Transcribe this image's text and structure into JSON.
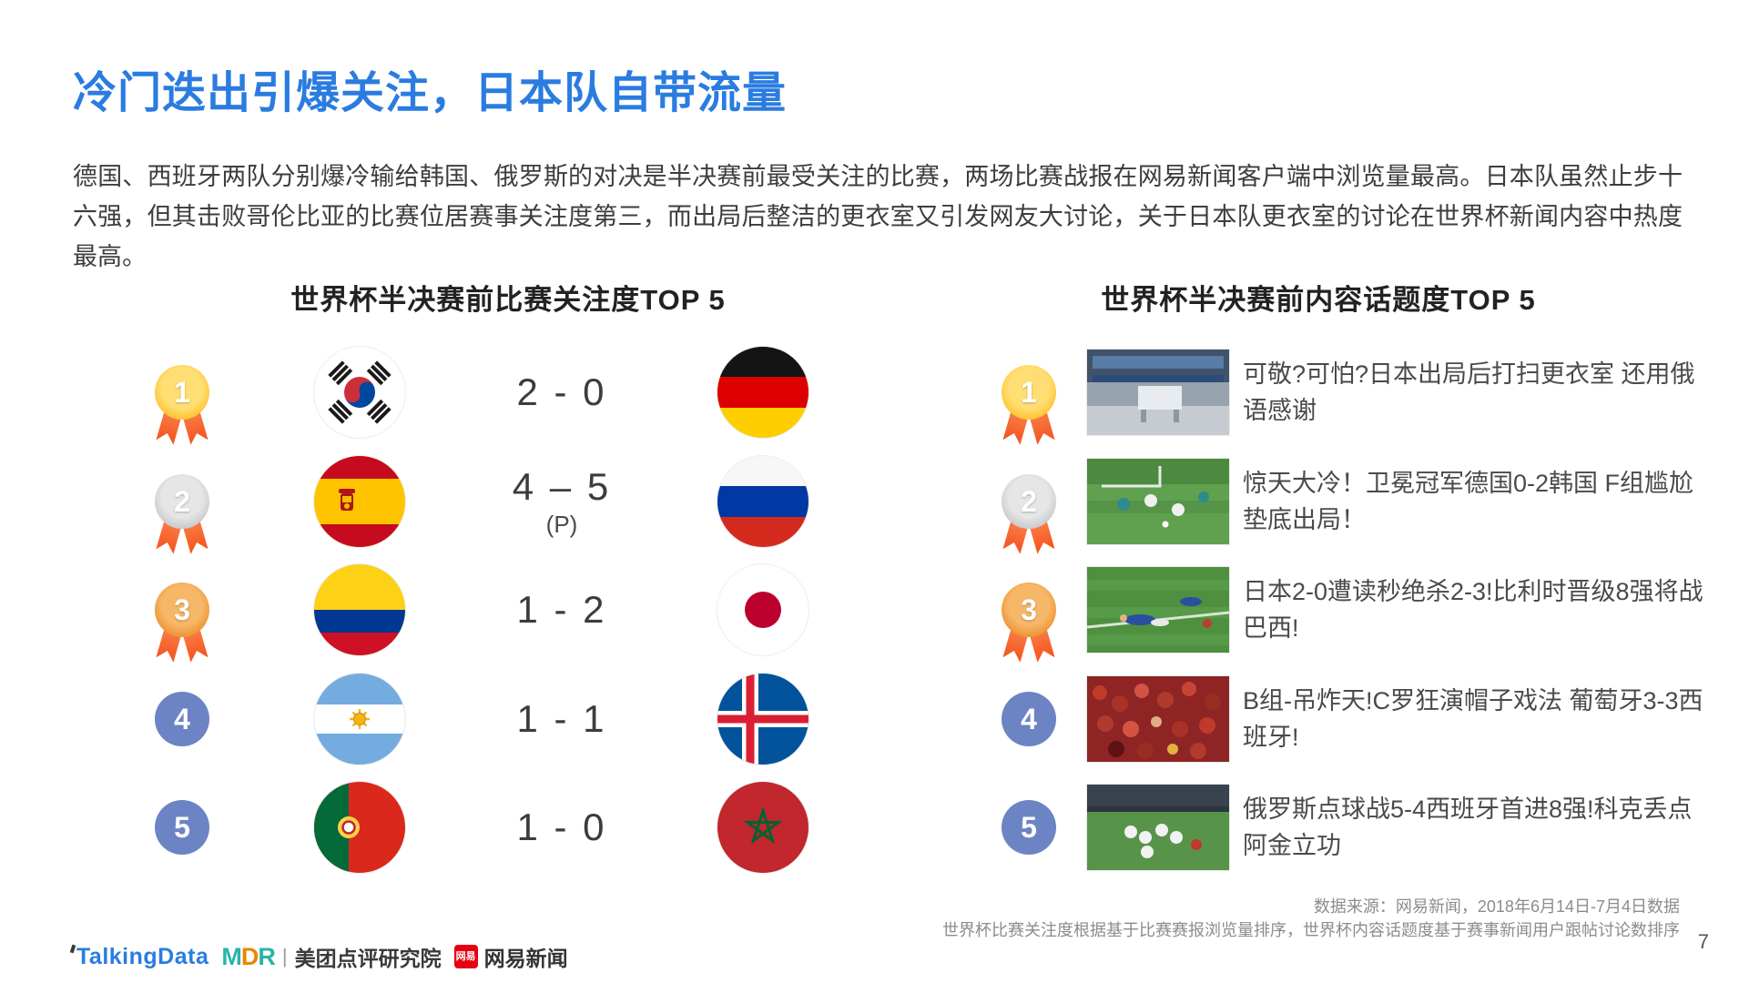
{
  "title": "冷门迭出引爆关注，日本队自带流量",
  "intro": "德国、西班牙两队分别爆冷输给韩国、俄罗斯的对决是半决赛前最受关注的比赛，两场比赛战报在网易新闻客户端中浏览量最高。日本队虽然止步十六强，但其击败哥伦比亚的比赛位居赛事关注度第三，而出局后整洁的更衣室又引发网友大讨论，关于日本队更衣室的讨论在世界杯新闻内容中热度最高。",
  "left_panel": {
    "title": "世界杯半决赛前比赛关注度TOP 5",
    "rows": [
      {
        "rank": "1",
        "medal": "gold",
        "home_flag": "south-korea-flag",
        "score": "2 - 0",
        "note": "",
        "away_flag": "germany-flag"
      },
      {
        "rank": "2",
        "medal": "silver",
        "home_flag": "spain-flag",
        "score": "4 – 5",
        "note": "(P)",
        "away_flag": "russia-flag"
      },
      {
        "rank": "3",
        "medal": "bronze",
        "home_flag": "colombia-flag",
        "score": "1 - 2",
        "note": "",
        "away_flag": "japan-flag"
      },
      {
        "rank": "4",
        "medal": "plain",
        "home_flag": "argentina-flag",
        "score": "1 - 1",
        "note": "",
        "away_flag": "iceland-flag"
      },
      {
        "rank": "5",
        "medal": "plain",
        "home_flag": "portugal-flag",
        "score": "1 - 0",
        "note": "",
        "away_flag": "morocco-flag"
      }
    ]
  },
  "right_panel": {
    "title": "世界杯半决赛前内容话题度TOP 5",
    "rows": [
      {
        "rank": "1",
        "medal": "gold",
        "thumb": "japan-locker-room-photo",
        "headline": "可敬?可怕?日本出局后打扫更衣室 还用俄语感谢"
      },
      {
        "rank": "2",
        "medal": "silver",
        "thumb": "germany-vs-korea-match-photo",
        "headline": "惊天大冷！卫冕冠军德国0-2韩国 F组尴尬垫底出局！"
      },
      {
        "rank": "3",
        "medal": "bronze",
        "thumb": "japan-vs-belgium-match-photo",
        "headline": "日本2-0遭读秒绝杀2-3!比利时晋级8强将战巴西!"
      },
      {
        "rank": "4",
        "medal": "plain",
        "thumb": "portugal-fans-photo",
        "headline": "B组-吊炸天!C罗狂演帽子戏法 葡萄牙3-3西班牙!"
      },
      {
        "rank": "5",
        "medal": "plain",
        "thumb": "russia-vs-spain-match-photo",
        "headline": "俄罗斯点球战5-4西班牙首进8强!科克丢点阿金立功"
      }
    ]
  },
  "footer": {
    "source_line1": "数据来源：网易新闻，2018年6月14日-7月4日数据",
    "source_line2": "世界杯比赛关注度根据基于比赛赛报浏览量排序，世界杯内容话题度基于赛事新闻用户跟帖讨论数排序",
    "page_number": "7",
    "logos": {
      "talkingdata": "TalkingData",
      "mdr_m": "M",
      "mdr_d": "D",
      "mdr_r": "R",
      "mdr_sep": "|",
      "mdr_label": "美团点评研究院",
      "netease_badge": "网易",
      "netease_label": "网易新闻"
    }
  },
  "colors": {
    "accent_blue": "#2A7CE0",
    "medal_gold": "#FFC93F",
    "medal_silver": "#CFCFCF",
    "medal_bronze": "#EF9A3D",
    "medal_plain_blue": "#6C84C4",
    "ribbon_orange": "#F4511E"
  }
}
